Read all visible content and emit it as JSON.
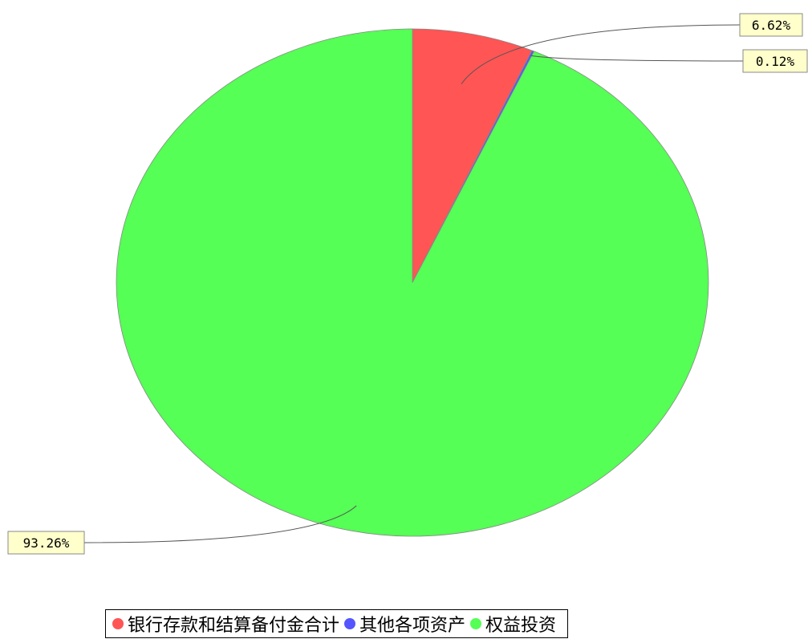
{
  "chart_data": {
    "type": "pie",
    "title": "",
    "slices": [
      {
        "name": "银行存款和结算备付金合计",
        "value": 6.62,
        "label": "6.62%",
        "color": "#ff5555"
      },
      {
        "name": "其他各项资产",
        "value": 0.12,
        "label": "0.12%",
        "color": "#5555ff"
      },
      {
        "name": "权益投资",
        "value": 93.26,
        "label": "93.26%",
        "color": "#55ff55"
      }
    ],
    "start_angle": "12 o'clock",
    "direction": "clockwise",
    "legend_position": "bottom"
  }
}
